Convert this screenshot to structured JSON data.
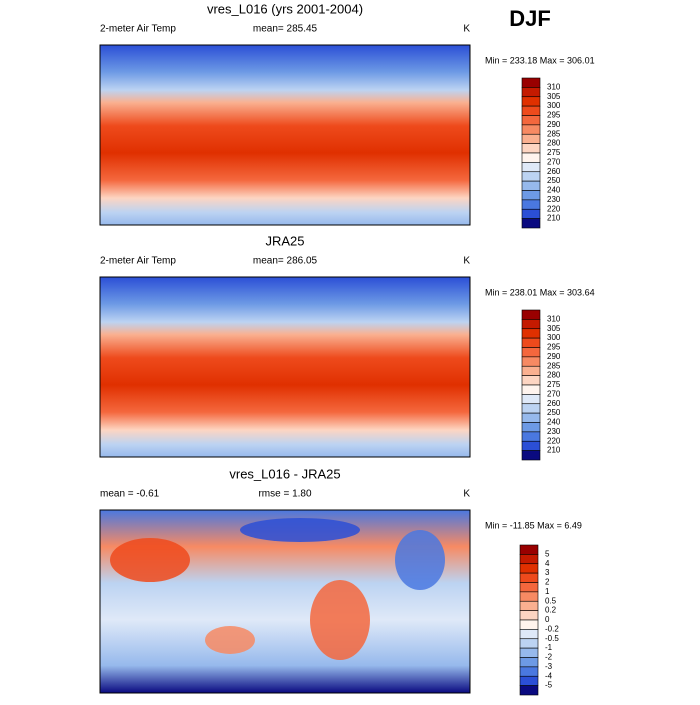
{
  "title": "DJF",
  "panels": [
    {
      "title": "vres_L016 (yrs 2001-2004)",
      "left": "2-meter Air Temp",
      "center": "mean= 285.45",
      "right": "K",
      "minmax": "Min = 233.18 Max = 306.01",
      "colorbar": {
        "labels": [
          "310",
          "305",
          "300",
          "295",
          "290",
          "285",
          "280",
          "275",
          "270",
          "260",
          "250",
          "240",
          "230",
          "220",
          "210"
        ],
        "colors": [
          "#990000",
          "#c41a00",
          "#e03000",
          "#ee4a1c",
          "#f4673d",
          "#f78a63",
          "#fab090",
          "#fdd5c2",
          "#fff4ee",
          "#dfe9f8",
          "#bcd3f2",
          "#96b9ec",
          "#6d9ae5",
          "#4a78e0",
          "#2b4fd6",
          "#0a0a80"
        ]
      }
    },
    {
      "title": "JRA25",
      "left": "2-meter Air Temp",
      "center": "mean= 286.05",
      "right": "K",
      "minmax": "Min = 238.01 Max = 303.64",
      "colorbar": {
        "labels": [
          "310",
          "305",
          "300",
          "295",
          "290",
          "285",
          "280",
          "275",
          "270",
          "260",
          "250",
          "240",
          "230",
          "220",
          "210"
        ],
        "colors": [
          "#990000",
          "#c41a00",
          "#e03000",
          "#ee4a1c",
          "#f4673d",
          "#f78a63",
          "#fab090",
          "#fdd5c2",
          "#fff4ee",
          "#dfe9f8",
          "#bcd3f2",
          "#96b9ec",
          "#6d9ae5",
          "#4a78e0",
          "#2b4fd6",
          "#0a0a80"
        ]
      }
    },
    {
      "title": "vres_L016 - JRA25",
      "left": "mean = -0.61",
      "center": "rmse = 1.80",
      "right": "K",
      "minmax": "Min = -11.85 Max = 6.49",
      "colorbar": {
        "labels": [
          "5",
          "4",
          "3",
          "2",
          "1",
          "0.5",
          "0.2",
          "0",
          "-0.2",
          "-0.5",
          "-1",
          "-2",
          "-3",
          "-4",
          "-5"
        ],
        "colors": [
          "#990000",
          "#c41a00",
          "#e03000",
          "#ee4a1c",
          "#f4673d",
          "#f78a63",
          "#fab090",
          "#fdd5c2",
          "#fff4ee",
          "#dfe9f8",
          "#bcd3f2",
          "#96b9ec",
          "#6d9ae5",
          "#4a78e0",
          "#2b4fd6",
          "#0a0a80"
        ]
      }
    }
  ]
}
